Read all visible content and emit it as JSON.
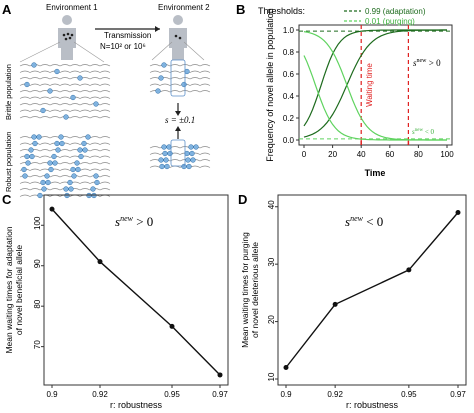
{
  "panelA": {
    "letter": "A",
    "env1": "Environment 1",
    "env2": "Environment 2",
    "transmission": "Transmission",
    "n_label": "N=10² or 10⁶",
    "s_label": "s = ±0.1",
    "brittle": "Brittle population",
    "robust": "Robust population"
  },
  "chart_data": [
    {
      "panel": "B",
      "type": "line",
      "xlabel": "Time",
      "ylabel": "Frequency of novel allele in population",
      "xticks": [
        "0",
        "20",
        "40",
        "60",
        "80",
        "100"
      ],
      "yticks": [
        "0.0",
        "0.2",
        "0.4",
        "0.6",
        "0.8",
        "1.0"
      ],
      "xlim": [
        0,
        100
      ],
      "ylim": [
        0,
        1
      ],
      "legend_title": "Thresholds:",
      "legend": [
        "0.99 (adaptation)",
        "0.01 (purging)"
      ],
      "annotations": {
        "waiting": "Waiting time",
        "s_pos": "s^new > 0",
        "s_neg": "s^new < 0"
      },
      "thresholds": [
        0.99,
        0.01
      ],
      "waiting_time_lines": [
        40,
        73
      ],
      "colors": {
        "dark": "#1e6b1e",
        "light": "#5fd35f",
        "red": "#e02020"
      }
    },
    {
      "panel": "C",
      "type": "line",
      "annotation": "s^new > 0",
      "xlabel": "r: robustness",
      "ylabel": "Mean waiting times for adaptation of novel beneficial allele",
      "x": [
        0.9,
        0.92,
        0.95,
        0.97
      ],
      "y": [
        104,
        91,
        75,
        63
      ],
      "xticks": [
        "0.9",
        "0.92",
        "0.95",
        "0.97"
      ],
      "yticks": [
        "70",
        "80",
        "90",
        "100"
      ],
      "ylim": [
        62,
        106
      ]
    },
    {
      "panel": "D",
      "type": "line",
      "annotation": "s^new < 0",
      "xlabel": "r: robustness",
      "ylabel": "Mean waiting times for purging of novel deleterious allele",
      "x": [
        0.9,
        0.92,
        0.95,
        0.97
      ],
      "y": [
        12,
        23,
        29,
        39
      ],
      "xticks": [
        "0.9",
        "0.92",
        "0.95",
        "0.97"
      ],
      "yticks": [
        "10",
        "20",
        "30",
        "40"
      ],
      "ylim": [
        10,
        41
      ]
    }
  ]
}
